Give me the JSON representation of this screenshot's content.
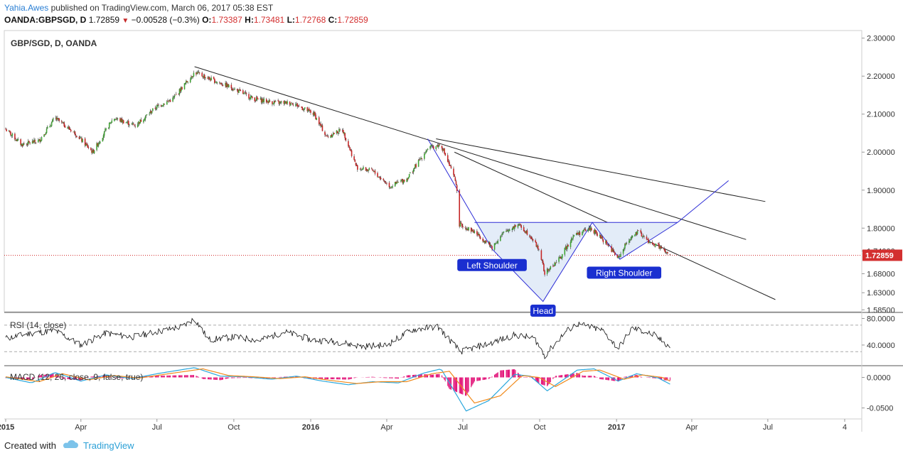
{
  "header": {
    "author": "Yahia.Awes",
    "published_text": " published on TradingView.com, March 06, 2017 05:38 EST",
    "symbol": "OANDA:GBPSGD, D",
    "last": "1.72859",
    "change": "−0.00528 (−0.3%)",
    "o_label": "O:",
    "o_value": "1.73387",
    "h_label": "H:",
    "h_value": "1.73481",
    "l_label": "L:",
    "l_value": "1.72768",
    "c_label": "C:",
    "c_value": "1.72859"
  },
  "footer": {
    "created_with": "Created with",
    "brand": "TradingView"
  },
  "chart_data": {
    "type": "candlestick",
    "title": "GBP/SGD, D, OANDA",
    "last_price_label": "1.72859",
    "last_price": 1.72859,
    "y_ticks": [
      "2.30000",
      "2.20000",
      "2.10000",
      "2.00000",
      "1.90000",
      "1.80000",
      "1.74000",
      "1.68000",
      "1.63000",
      "1.58500"
    ],
    "y_tick_values": [
      2.3,
      2.2,
      2.1,
      2.0,
      1.9,
      1.8,
      1.74,
      1.68,
      1.63,
      1.585
    ],
    "ylim": [
      1.58,
      2.32
    ],
    "x_ticks": [
      "2015",
      "Apr",
      "Jul",
      "Oct",
      "2016",
      "Apr",
      "Jul",
      "Oct",
      "2017",
      "Apr",
      "Jul",
      "4"
    ],
    "x_tick_dates": [
      "2015-01-01",
      "2015-04-01",
      "2015-07-01",
      "2015-10-01",
      "2016-01-01",
      "2016-04-01",
      "2016-07-01",
      "2016-10-01",
      "2017-01-01",
      "2017-04-01",
      "2017-07-01",
      "2017-10-01"
    ],
    "bold_x_ticks": [
      "2015",
      "2016",
      "2017"
    ],
    "price_anchors": [
      [
        "2015-01-01",
        2.06
      ],
      [
        "2015-01-20",
        2.02
      ],
      [
        "2015-02-10",
        2.03
      ],
      [
        "2015-03-01",
        2.09
      ],
      [
        "2015-03-25",
        2.05
      ],
      [
        "2015-04-15",
        2.0
      ],
      [
        "2015-05-10",
        2.09
      ],
      [
        "2015-06-05",
        2.07
      ],
      [
        "2015-07-01",
        2.12
      ],
      [
        "2015-07-20",
        2.14
      ],
      [
        "2015-08-15",
        2.21
      ],
      [
        "2015-09-05",
        2.19
      ],
      [
        "2015-09-28",
        2.17
      ],
      [
        "2015-10-25",
        2.14
      ],
      [
        "2015-11-20",
        2.13
      ],
      [
        "2015-12-10",
        2.13
      ],
      [
        "2016-01-05",
        2.1
      ],
      [
        "2016-01-20",
        2.04
      ],
      [
        "2016-02-08",
        2.06
      ],
      [
        "2016-02-25",
        1.96
      ],
      [
        "2016-03-15",
        1.95
      ],
      [
        "2016-04-05",
        1.91
      ],
      [
        "2016-04-25",
        1.93
      ],
      [
        "2016-05-20",
        2.01
      ],
      [
        "2016-06-05",
        2.02
      ],
      [
        "2016-06-23",
        1.92
      ],
      [
        "2016-06-27",
        1.81
      ],
      [
        "2016-07-15",
        1.79
      ],
      [
        "2016-08-05",
        1.75
      ],
      [
        "2016-08-20",
        1.79
      ],
      [
        "2016-09-05",
        1.81
      ],
      [
        "2016-09-20",
        1.78
      ],
      [
        "2016-10-01",
        1.74
      ],
      [
        "2016-10-07",
        1.68
      ],
      [
        "2016-10-25",
        1.72
      ],
      [
        "2016-11-10",
        1.78
      ],
      [
        "2016-12-01",
        1.8
      ],
      [
        "2016-12-20",
        1.76
      ],
      [
        "2017-01-03",
        1.72
      ],
      [
        "2017-01-15",
        1.77
      ],
      [
        "2017-01-28",
        1.79
      ],
      [
        "2017-02-10",
        1.76
      ],
      [
        "2017-02-22",
        1.75
      ],
      [
        "2017-03-03",
        1.73
      ],
      [
        "2017-03-06",
        1.72859
      ]
    ],
    "trendlines": [
      {
        "from": [
          "2015-08-15",
          2.225
        ],
        "to": [
          "2017-06-05",
          1.77
        ]
      },
      {
        "from": [
          "2016-05-30",
          2.035
        ],
        "to": [
          "2017-06-28",
          1.87
        ],
        "note": ""
      },
      {
        "from": [
          "2016-06-21",
          2.0
        ],
        "to": [
          "2017-07-10",
          1.612
        ]
      }
    ],
    "pattern_polyline": [
      [
        "2016-05-20",
        2.035
      ],
      [
        "2016-08-05",
        1.745
      ],
      [
        "2016-10-05",
        1.607
      ],
      [
        "2016-12-03",
        1.815
      ],
      [
        "2017-01-05",
        1.718
      ],
      [
        "2017-03-15",
        1.815
      ],
      [
        "2017-05-15",
        1.925
      ]
    ],
    "neckline": [
      [
        "2016-07-15",
        1.815
      ],
      [
        "2017-03-15",
        1.815
      ]
    ],
    "labels": [
      {
        "text": "Left Shoulder",
        "date": "2016-08-05",
        "price": 1.7
      },
      {
        "text": "Head",
        "date": "2016-10-05",
        "price": 1.58
      },
      {
        "text": "Right Shoulder",
        "date": "2017-01-10",
        "price": 1.68
      }
    ],
    "rsi": {
      "label": "RSI (14, close)",
      "ticks": [
        "80.0000",
        "40.0000"
      ],
      "tick_values": [
        80,
        40
      ],
      "levels": [
        70,
        30
      ],
      "ylim": [
        10,
        88
      ],
      "anchors": [
        [
          "2015-01-01",
          50
        ],
        [
          "2015-02-01",
          58
        ],
        [
          "2015-03-01",
          62
        ],
        [
          "2015-04-01",
          40
        ],
        [
          "2015-05-01",
          58
        ],
        [
          "2015-06-01",
          52
        ],
        [
          "2015-07-01",
          60
        ],
        [
          "2015-08-01",
          68
        ],
        [
          "2015-08-15",
          80
        ],
        [
          "2015-09-01",
          48
        ],
        [
          "2015-10-01",
          52
        ],
        [
          "2015-11-01",
          47
        ],
        [
          "2015-12-01",
          60
        ],
        [
          "2016-01-01",
          48
        ],
        [
          "2016-02-01",
          45
        ],
        [
          "2016-03-01",
          38
        ],
        [
          "2016-04-01",
          40
        ],
        [
          "2016-05-01",
          63
        ],
        [
          "2016-06-01",
          68
        ],
        [
          "2016-06-28",
          30
        ],
        [
          "2016-08-01",
          42
        ],
        [
          "2016-09-01",
          55
        ],
        [
          "2016-09-25",
          50
        ],
        [
          "2016-10-07",
          24
        ],
        [
          "2016-11-01",
          60
        ],
        [
          "2016-11-15",
          72
        ],
        [
          "2016-12-15",
          62
        ],
        [
          "2017-01-03",
          35
        ],
        [
          "2017-01-20",
          66
        ],
        [
          "2017-02-15",
          55
        ],
        [
          "2017-03-06",
          37
        ]
      ]
    },
    "macd": {
      "label": "MACD (12, 26, close, 9, false, true)",
      "ticks": [
        "0.0000",
        "-0.0500"
      ],
      "tick_values": [
        0.0,
        -0.05
      ],
      "ylim": [
        -0.068,
        0.018
      ],
      "macd_anchors": [
        [
          "2015-01-01",
          0.0
        ],
        [
          "2015-02-01",
          -0.009
        ],
        [
          "2015-03-01",
          0.008
        ],
        [
          "2015-04-01",
          -0.006
        ],
        [
          "2015-05-01",
          0.004
        ],
        [
          "2015-06-01",
          -0.002
        ],
        [
          "2015-07-01",
          0.006
        ],
        [
          "2015-08-15",
          0.016
        ],
        [
          "2015-09-15",
          0.002
        ],
        [
          "2015-10-15",
          0.001
        ],
        [
          "2015-11-15",
          -0.003
        ],
        [
          "2015-12-15",
          0.002
        ],
        [
          "2016-01-15",
          -0.006
        ],
        [
          "2016-02-15",
          -0.012
        ],
        [
          "2016-03-15",
          -0.007
        ],
        [
          "2016-04-15",
          -0.009
        ],
        [
          "2016-05-15",
          0.007
        ],
        [
          "2016-06-05",
          0.014
        ],
        [
          "2016-07-05",
          -0.055
        ],
        [
          "2016-08-01",
          -0.038
        ],
        [
          "2016-09-01",
          0.005
        ],
        [
          "2016-09-20",
          0.002
        ],
        [
          "2016-10-10",
          -0.022
        ],
        [
          "2016-11-15",
          0.012
        ],
        [
          "2016-12-05",
          0.014
        ],
        [
          "2017-01-03",
          -0.006
        ],
        [
          "2017-01-25",
          0.006
        ],
        [
          "2017-02-20",
          -0.001
        ],
        [
          "2017-03-06",
          -0.011
        ]
      ],
      "signal_anchors": [
        [
          "2015-01-01",
          0.001
        ],
        [
          "2015-02-10",
          -0.007
        ],
        [
          "2015-03-10",
          0.006
        ],
        [
          "2015-04-10",
          -0.004
        ],
        [
          "2015-05-10",
          0.003
        ],
        [
          "2015-06-10",
          -0.001
        ],
        [
          "2015-07-10",
          0.005
        ],
        [
          "2015-08-25",
          0.014
        ],
        [
          "2015-09-25",
          0.003
        ],
        [
          "2015-10-25",
          0.001
        ],
        [
          "2015-11-25",
          -0.002
        ],
        [
          "2015-12-25",
          0.001
        ],
        [
          "2016-01-25",
          -0.005
        ],
        [
          "2016-02-25",
          -0.01
        ],
        [
          "2016-03-25",
          -0.007
        ],
        [
          "2016-04-25",
          -0.007
        ],
        [
          "2016-05-25",
          0.006
        ],
        [
          "2016-06-15",
          0.01
        ],
        [
          "2016-07-15",
          -0.042
        ],
        [
          "2016-08-15",
          -0.03
        ],
        [
          "2016-09-10",
          0.003
        ],
        [
          "2016-09-30",
          0.0
        ],
        [
          "2016-10-20",
          -0.015
        ],
        [
          "2016-11-22",
          0.01
        ],
        [
          "2016-12-12",
          0.012
        ],
        [
          "2017-01-10",
          -0.003
        ],
        [
          "2017-02-01",
          0.004
        ],
        [
          "2017-02-25",
          0.0
        ],
        [
          "2017-03-06",
          -0.006
        ]
      ]
    },
    "colors": {
      "up": "#41a335",
      "down": "#c62828",
      "wick": "#333333",
      "trend": "#222222",
      "pattern": "#2c2cd6",
      "pattern_fill": "#e3ecf8",
      "label_bg": "#1a2fd0",
      "last_price_bg": "#d32f2f",
      "rsi": "#111111",
      "macd": "#2aa7dc",
      "signal": "#f08a1c",
      "hist_pos": "#e0006e",
      "hist_neg": "#e0006e"
    }
  }
}
